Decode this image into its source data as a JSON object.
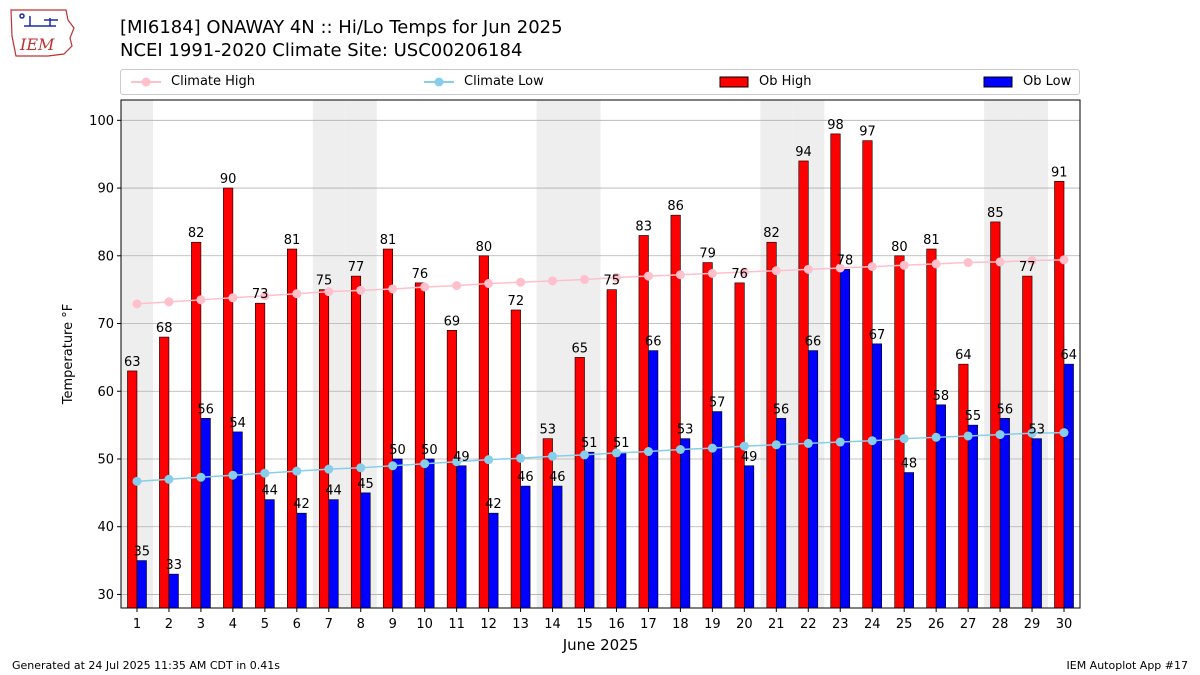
{
  "header": {
    "logo_text": "IEM",
    "title_line1": "[MI6184] ONAWAY 4N :: Hi/Lo Temps for Jun 2025",
    "title_line2": "NCEI 1991-2020 Climate Site: USC00206184"
  },
  "legend": {
    "items": [
      {
        "label": "Climate High",
        "color": "#ffc0cb",
        "kind": "line"
      },
      {
        "label": "Climate Low",
        "color": "#87ceeb",
        "kind": "line"
      },
      {
        "label": "Ob High",
        "color": "#ff0000",
        "kind": "bar"
      },
      {
        "label": "Ob Low",
        "color": "#0000ff",
        "kind": "bar"
      }
    ]
  },
  "footer": {
    "generated": "Generated at 24 Jul 2025 11:35 AM CDT in 0.41s",
    "app": "IEM Autoplot App #17"
  },
  "chart_data": {
    "type": "bar",
    "xlabel": "June 2025",
    "ylabel": "Temperature °F",
    "ylim": [
      28,
      103
    ],
    "yticks": [
      30,
      40,
      50,
      60,
      70,
      80,
      90,
      100
    ],
    "grid": "horizontal",
    "legend_position": "top",
    "weekend_shading_days": [
      1,
      7,
      8,
      14,
      15,
      21,
      22,
      28,
      29
    ],
    "categories": [
      "1",
      "2",
      "3",
      "4",
      "5",
      "6",
      "7",
      "8",
      "9",
      "10",
      "11",
      "12",
      "13",
      "14",
      "15",
      "16",
      "17",
      "18",
      "19",
      "20",
      "21",
      "22",
      "23",
      "24",
      "25",
      "26",
      "27",
      "28",
      "29",
      "30"
    ],
    "series": [
      {
        "name": "Ob High",
        "kind": "bar",
        "color": "#ff0000",
        "values": [
          63,
          68,
          82,
          90,
          73,
          81,
          75,
          77,
          81,
          76,
          69,
          80,
          72,
          53,
          65,
          75,
          83,
          86,
          79,
          76,
          82,
          94,
          98,
          97,
          80,
          81,
          64,
          85,
          77,
          91
        ]
      },
      {
        "name": "Ob Low",
        "kind": "bar",
        "color": "#0000ff",
        "values": [
          35,
          33,
          56,
          54,
          44,
          42,
          44,
          45,
          50,
          50,
          49,
          42,
          46,
          46,
          51,
          51,
          66,
          53,
          57,
          49,
          56,
          66,
          78,
          67,
          48,
          58,
          55,
          56,
          53,
          64
        ]
      },
      {
        "name": "Climate High",
        "kind": "line",
        "color": "#ffc0cb",
        "values": [
          72.9,
          73.2,
          73.5,
          73.8,
          74.1,
          74.4,
          74.7,
          74.9,
          75.1,
          75.4,
          75.6,
          75.9,
          76.1,
          76.3,
          76.5,
          76.8,
          77.0,
          77.2,
          77.4,
          77.6,
          77.8,
          78.0,
          78.2,
          78.4,
          78.6,
          78.8,
          79.0,
          79.1,
          79.3,
          79.4
        ]
      },
      {
        "name": "Climate Low",
        "kind": "line",
        "color": "#87ceeb",
        "values": [
          46.7,
          47.0,
          47.3,
          47.6,
          47.9,
          48.2,
          48.5,
          48.7,
          49.0,
          49.3,
          49.6,
          49.9,
          50.1,
          50.4,
          50.6,
          50.9,
          51.1,
          51.4,
          51.6,
          51.9,
          52.1,
          52.3,
          52.5,
          52.7,
          53.0,
          53.2,
          53.4,
          53.6,
          53.8,
          53.9
        ]
      }
    ]
  }
}
